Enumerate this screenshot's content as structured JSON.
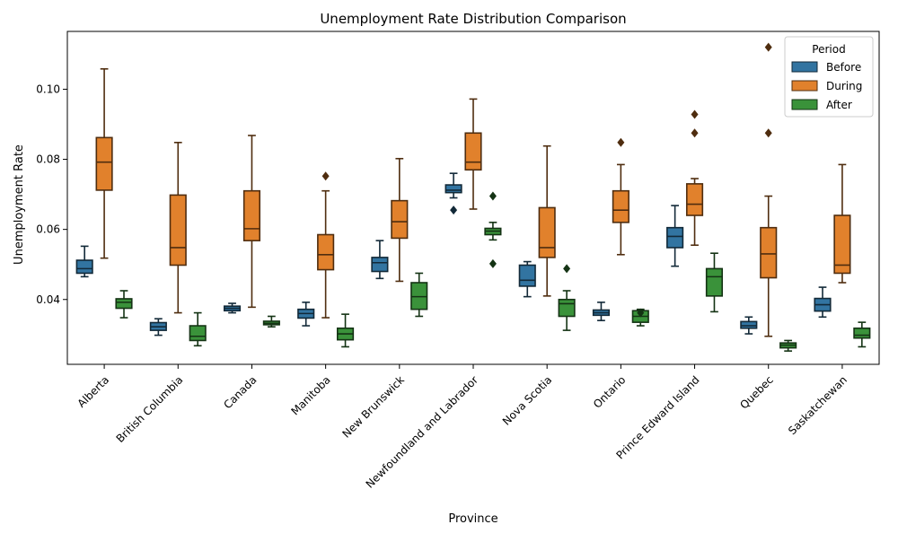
{
  "chart_data": {
    "type": "box",
    "title": "Unemployment Rate Distribution Comparison",
    "xlabel": "Province",
    "ylabel": "Unemployment Rate",
    "ylim": [
      0.0215,
      0.1165
    ],
    "yticks": [
      0.04,
      0.06,
      0.08,
      0.1
    ],
    "ytick_labels": [
      "0.04",
      "0.06",
      "0.08",
      "0.10"
    ],
    "grid": false,
    "legend": {
      "title": "Period",
      "position": "top-right"
    },
    "categories": [
      "Alberta",
      "British Columbia",
      "Canada",
      "Manitoba",
      "New Brunswick",
      "Newfoundland and Labrador",
      "Nova Scotia",
      "Ontario",
      "Prince Edward Island",
      "Quebec",
      "Saskatchewan"
    ],
    "series": [
      {
        "name": "Before",
        "color": "#3274a1",
        "boxes": [
          {
            "whislo": 0.0465,
            "q1": 0.0475,
            "med": 0.0488,
            "q3": 0.0512,
            "whishi": 0.0552,
            "fliers": []
          },
          {
            "whislo": 0.0298,
            "q1": 0.0312,
            "med": 0.0322,
            "q3": 0.0334,
            "whishi": 0.0345,
            "fliers": []
          },
          {
            "whislo": 0.0362,
            "q1": 0.0368,
            "med": 0.0375,
            "q3": 0.0381,
            "whishi": 0.0389,
            "fliers": []
          },
          {
            "whislo": 0.0325,
            "q1": 0.0347,
            "med": 0.036,
            "q3": 0.0372,
            "whishi": 0.0392,
            "fliers": []
          },
          {
            "whislo": 0.046,
            "q1": 0.048,
            "med": 0.0505,
            "q3": 0.052,
            "whishi": 0.0568,
            "fliers": []
          },
          {
            "whislo": 0.069,
            "q1": 0.0705,
            "med": 0.0712,
            "q3": 0.0727,
            "whishi": 0.076,
            "fliers": [
              0.0655
            ]
          },
          {
            "whislo": 0.0408,
            "q1": 0.0438,
            "med": 0.0455,
            "q3": 0.0498,
            "whishi": 0.0508,
            "fliers": []
          },
          {
            "whislo": 0.034,
            "q1": 0.0355,
            "med": 0.0362,
            "q3": 0.037,
            "whishi": 0.0392,
            "fliers": []
          },
          {
            "whislo": 0.0495,
            "q1": 0.0548,
            "med": 0.058,
            "q3": 0.0605,
            "whishi": 0.0668,
            "fliers": []
          },
          {
            "whislo": 0.0302,
            "q1": 0.0318,
            "med": 0.0325,
            "q3": 0.0337,
            "whishi": 0.035,
            "fliers": []
          },
          {
            "whislo": 0.035,
            "q1": 0.0367,
            "med": 0.0385,
            "q3": 0.0403,
            "whishi": 0.0435,
            "fliers": []
          }
        ]
      },
      {
        "name": "During",
        "color": "#e1812c",
        "boxes": [
          {
            "whislo": 0.0518,
            "q1": 0.0712,
            "med": 0.0792,
            "q3": 0.0862,
            "whishi": 0.1058,
            "fliers": []
          },
          {
            "whislo": 0.0362,
            "q1": 0.0498,
            "med": 0.0548,
            "q3": 0.0698,
            "whishi": 0.0848,
            "fliers": []
          },
          {
            "whislo": 0.0378,
            "q1": 0.0568,
            "med": 0.0602,
            "q3": 0.071,
            "whishi": 0.0868,
            "fliers": []
          },
          {
            "whislo": 0.0348,
            "q1": 0.0485,
            "med": 0.0528,
            "q3": 0.0585,
            "whishi": 0.071,
            "fliers": [
              0.0752
            ]
          },
          {
            "whislo": 0.0452,
            "q1": 0.0575,
            "med": 0.0622,
            "q3": 0.0682,
            "whishi": 0.0802,
            "fliers": []
          },
          {
            "whislo": 0.0658,
            "q1": 0.077,
            "med": 0.0792,
            "q3": 0.0875,
            "whishi": 0.0972,
            "fliers": []
          },
          {
            "whislo": 0.041,
            "q1": 0.052,
            "med": 0.0548,
            "q3": 0.0662,
            "whishi": 0.0838,
            "fliers": []
          },
          {
            "whislo": 0.0528,
            "q1": 0.062,
            "med": 0.0655,
            "q3": 0.071,
            "whishi": 0.0785,
            "fliers": [
              0.0848
            ]
          },
          {
            "whislo": 0.0555,
            "q1": 0.064,
            "med": 0.0672,
            "q3": 0.073,
            "whishi": 0.0745,
            "fliers": [
              0.0875,
              0.0928
            ]
          },
          {
            "whislo": 0.0295,
            "q1": 0.0462,
            "med": 0.053,
            "q3": 0.0605,
            "whishi": 0.0695,
            "fliers": [
              0.0875,
              0.112
            ]
          },
          {
            "whislo": 0.0448,
            "q1": 0.0475,
            "med": 0.0498,
            "q3": 0.064,
            "whishi": 0.0785,
            "fliers": []
          }
        ]
      },
      {
        "name": "After",
        "color": "#3a923a",
        "boxes": [
          {
            "whislo": 0.0348,
            "q1": 0.0375,
            "med": 0.0392,
            "q3": 0.0402,
            "whishi": 0.0425,
            "fliers": []
          },
          {
            "whislo": 0.0268,
            "q1": 0.0283,
            "med": 0.0295,
            "q3": 0.0325,
            "whishi": 0.0362,
            "fliers": []
          },
          {
            "whislo": 0.0322,
            "q1": 0.0328,
            "med": 0.0332,
            "q3": 0.0338,
            "whishi": 0.0352,
            "fliers": []
          },
          {
            "whislo": 0.0265,
            "q1": 0.0285,
            "med": 0.0302,
            "q3": 0.0318,
            "whishi": 0.0358,
            "fliers": []
          },
          {
            "whislo": 0.0352,
            "q1": 0.0372,
            "med": 0.0408,
            "q3": 0.0448,
            "whishi": 0.0475,
            "fliers": []
          },
          {
            "whislo": 0.057,
            "q1": 0.0585,
            "med": 0.0595,
            "q3": 0.0603,
            "whishi": 0.062,
            "fliers": [
              0.0502,
              0.0695
            ]
          },
          {
            "whislo": 0.0312,
            "q1": 0.0352,
            "med": 0.0388,
            "q3": 0.04,
            "whishi": 0.0425,
            "fliers": [
              0.0488
            ]
          },
          {
            "whislo": 0.0325,
            "q1": 0.0335,
            "med": 0.0352,
            "q3": 0.0368,
            "whishi": 0.0372,
            "fliers": [
              0.0362
            ]
          },
          {
            "whislo": 0.0365,
            "q1": 0.041,
            "med": 0.0465,
            "q3": 0.0488,
            "whishi": 0.0532,
            "fliers": []
          },
          {
            "whislo": 0.0253,
            "q1": 0.0262,
            "med": 0.027,
            "q3": 0.0276,
            "whishi": 0.0283,
            "fliers": []
          },
          {
            "whislo": 0.0265,
            "q1": 0.029,
            "med": 0.0298,
            "q3": 0.0318,
            "whishi": 0.0335,
            "fliers": []
          }
        ]
      }
    ]
  }
}
